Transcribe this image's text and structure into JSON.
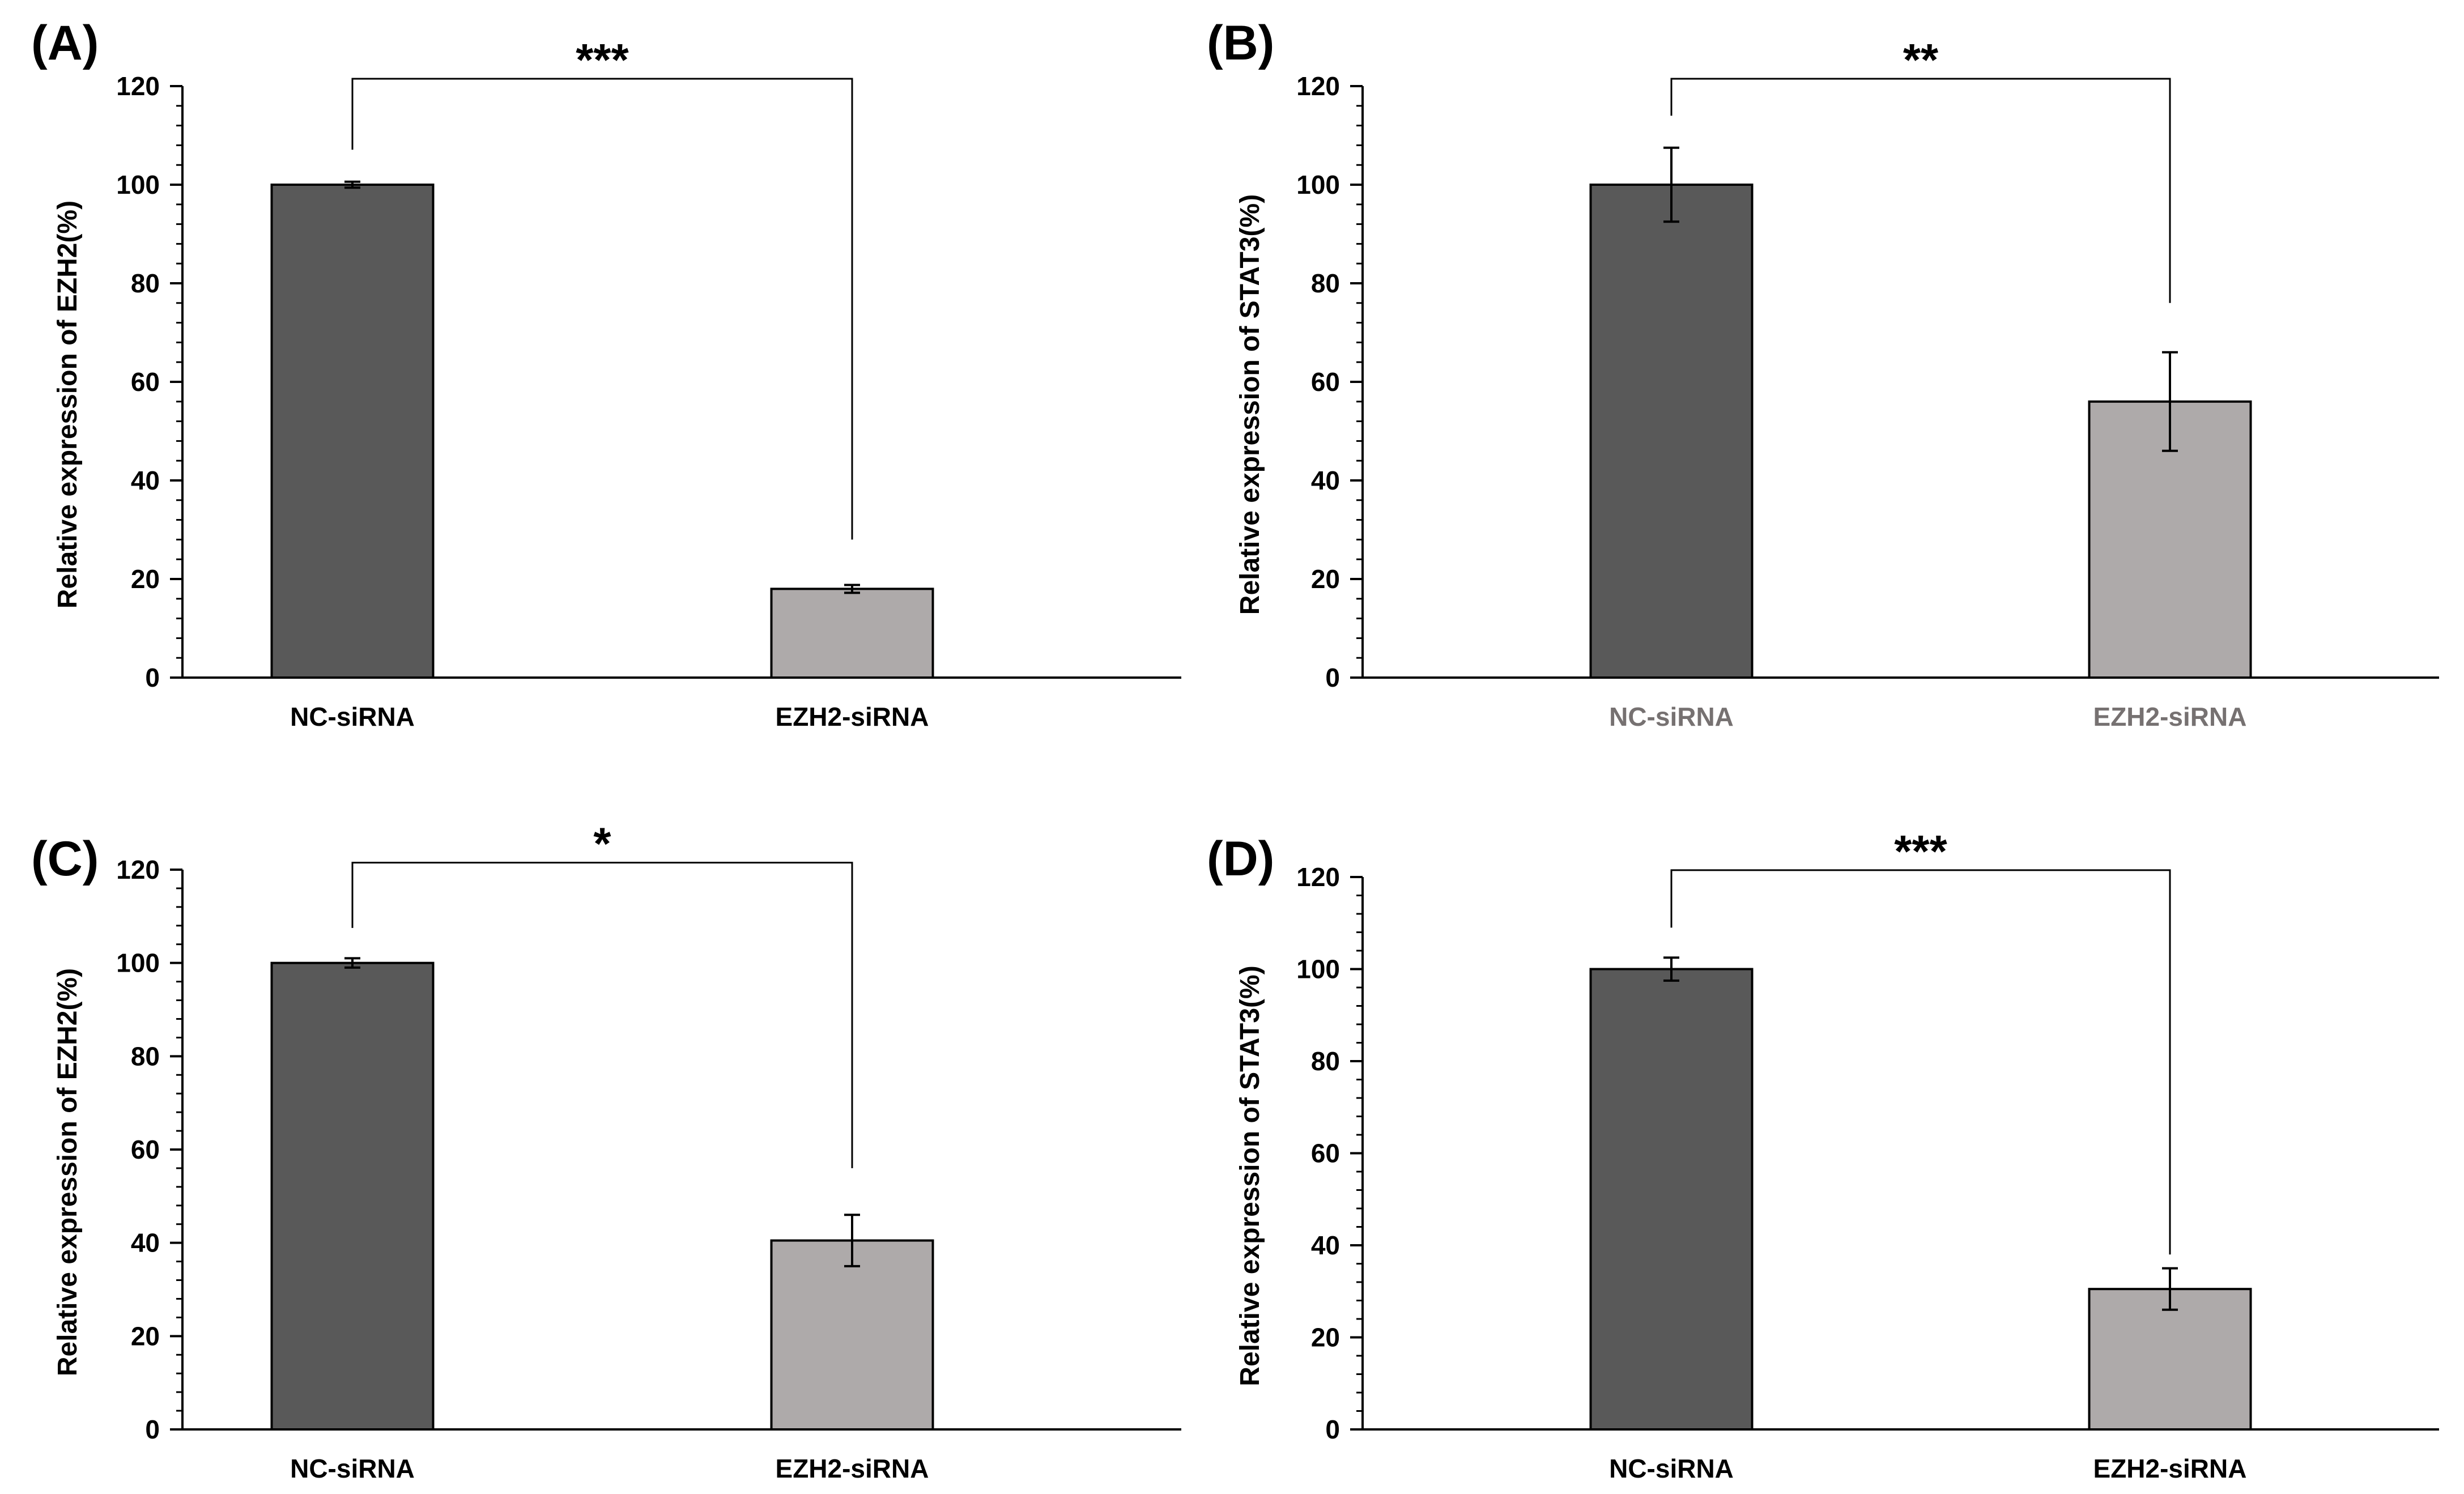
{
  "colors": {
    "bar_nc": "#595959",
    "bar_ezh2": "#aeaaaa",
    "axis": "#000000",
    "muted_label": "#767171"
  },
  "chart_data": [
    {
      "panel_label": "(A)",
      "type": "bar",
      "categories": [
        "NC-siRNA",
        "EZH2-siRNA"
      ],
      "values": [
        100,
        18
      ],
      "errors": [
        0.6,
        0.8
      ],
      "ylabel": "Relative expression of EZH2(%)",
      "xlabel": "",
      "ylim": [
        0,
        120
      ],
      "yticks": [
        0,
        20,
        40,
        60,
        80,
        100,
        120
      ],
      "ytick_labels": [
        "0",
        "20",
        "40",
        "60",
        "80",
        "100",
        "120"
      ],
      "significance": "***",
      "bracket_right_end": 28,
      "category_label_color": "#000000"
    },
    {
      "panel_label": "(B)",
      "type": "bar",
      "categories": [
        "NC-siRNA",
        "EZH2-siRNA"
      ],
      "values": [
        100,
        56
      ],
      "errors": [
        7.5,
        10
      ],
      "ylabel": "Relative expression of STAT3(%)",
      "xlabel": "",
      "ylim": [
        0,
        120
      ],
      "yticks": [
        0,
        20,
        40,
        60,
        80,
        100,
        120
      ],
      "ytick_labels": [
        "0",
        "20",
        "40",
        "60",
        "80",
        "100",
        "120"
      ],
      "significance": "**",
      "bracket_right_end": 76,
      "category_label_color": "#767171"
    },
    {
      "panel_label": "(C)",
      "type": "bar",
      "categories": [
        "NC-siRNA",
        "EZH2-siRNA"
      ],
      "values": [
        100,
        40.5
      ],
      "errors": [
        1,
        5.5
      ],
      "ylabel": "Relative expression of EZH2(%)",
      "xlabel": "",
      "ylim": [
        0,
        120
      ],
      "yticks": [
        0,
        20,
        40,
        60,
        80,
        100,
        120
      ],
      "ytick_labels": [
        "0",
        "20",
        "40",
        "60",
        "80",
        "100",
        "120"
      ],
      "significance": "*",
      "bracket_right_end": 56,
      "category_label_color": "#000000"
    },
    {
      "panel_label": "(D)",
      "type": "bar",
      "categories": [
        "NC-siRNA",
        "EZH2-siRNA"
      ],
      "values": [
        100,
        30.5
      ],
      "errors": [
        2.5,
        4.5
      ],
      "ylabel": "Relative expression of STAT3(%)",
      "xlabel": "",
      "ylim": [
        0,
        120
      ],
      "yticks": [
        0,
        20,
        40,
        60,
        80,
        100,
        120
      ],
      "ytick_labels": [
        "0",
        "20",
        "40",
        "60",
        "80",
        "100",
        "120"
      ],
      "significance": "***",
      "bracket_right_end": 38,
      "category_label_color": "#000000"
    }
  ]
}
